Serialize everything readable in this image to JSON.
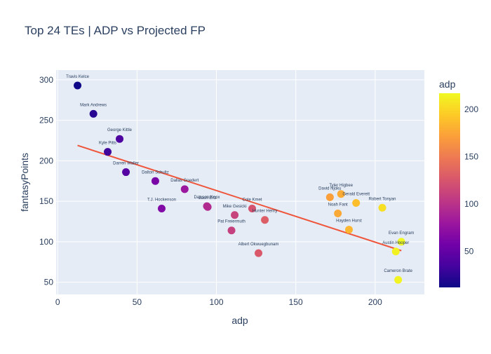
{
  "chart_data": {
    "type": "scatter",
    "title": "Top 24 TEs | ADP vs Projected FP",
    "xlabel": "adp",
    "ylabel": "fantasyPoints",
    "xlim": [
      -1,
      231
    ],
    "ylim": [
      35,
      312
    ],
    "xticks": [
      0,
      50,
      100,
      150,
      200
    ],
    "yticks": [
      50,
      100,
      150,
      200,
      250,
      300
    ],
    "grid": true,
    "colorbar": {
      "title": "adp",
      "min": 12,
      "max": 217,
      "ticks": [
        50,
        100,
        150,
        200
      ]
    },
    "points": [
      {
        "label": "Travis Kelce",
        "x": 12.5,
        "y": 293
      },
      {
        "label": "Mark Andrews",
        "x": 22.5,
        "y": 258
      },
      {
        "label": "George Kittle",
        "x": 39,
        "y": 227
      },
      {
        "label": "Kyle Pitts",
        "x": 31.5,
        "y": 211
      },
      {
        "label": "Darren Waller",
        "x": 43,
        "y": 186
      },
      {
        "label": "Dalton Schultz",
        "x": 61.5,
        "y": 175
      },
      {
        "label": "Dallas Goedert",
        "x": 80,
        "y": 165
      },
      {
        "label": "T.J. Hockenson",
        "x": 65.5,
        "y": 141
      },
      {
        "label": "Dawson Knox",
        "x": 94,
        "y": 144
      },
      {
        "label": "Zach Ertz",
        "x": 94.5,
        "y": 143
      },
      {
        "label": "Cole Kmet",
        "x": 122.5,
        "y": 141
      },
      {
        "label": "Mike Gesicki",
        "x": 111.5,
        "y": 133
      },
      {
        "label": "Hunter Henry",
        "x": 130.5,
        "y": 127
      },
      {
        "label": "Pat Freiermuth",
        "x": 109.5,
        "y": 114
      },
      {
        "label": "Albert Okwuegbunam",
        "x": 126.5,
        "y": 86
      },
      {
        "label": "David Njoku",
        "x": 171.5,
        "y": 155
      },
      {
        "label": "Tyler Higbee",
        "x": 178.5,
        "y": 159
      },
      {
        "label": "Gerald Everett",
        "x": 188,
        "y": 148
      },
      {
        "label": "Noah Fant",
        "x": 176.5,
        "y": 135
      },
      {
        "label": "Robert Tonyan",
        "x": 204.5,
        "y": 142
      },
      {
        "label": "Hayden Hurst",
        "x": 183.5,
        "y": 115
      },
      {
        "label": "Evan Engram",
        "x": 216.5,
        "y": 100
      },
      {
        "label": "Austin Hooper",
        "x": 213,
        "y": 88
      },
      {
        "label": "Cameron Brate",
        "x": 214.5,
        "y": 53
      }
    ],
    "trendline": {
      "x": [
        12.5,
        216.5
      ],
      "y": [
        219,
        89
      ],
      "color": "#ef553b"
    }
  }
}
